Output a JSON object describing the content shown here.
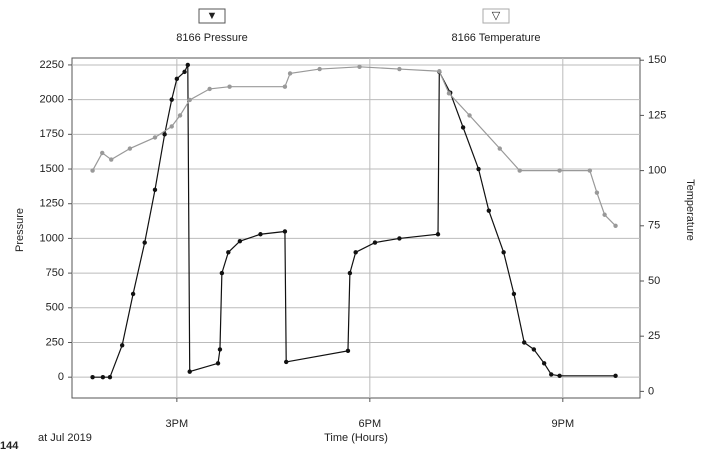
{
  "chart_data": {
    "type": "line",
    "xlabel": "Time (Hours)",
    "ylabel": "Pressure",
    "y2label": "Temperature",
    "annotation": "144",
    "annotation_note": "at Jul 2019",
    "xlim": [
      13.37,
      22.2
    ],
    "xticks": [
      {
        "value": 15,
        "label": "3PM"
      },
      {
        "value": 18,
        "label": "6PM"
      },
      {
        "value": 21,
        "label": "9PM"
      }
    ],
    "ylim": [
      -150,
      2300
    ],
    "yticks": [
      0,
      250,
      500,
      750,
      1000,
      1250,
      1500,
      1750,
      2000,
      2250
    ],
    "y2lim": [
      -3,
      151
    ],
    "y2ticks": [
      0,
      25,
      50,
      75,
      100,
      125,
      150
    ],
    "grid": true,
    "series": [
      {
        "name": "8166 Pressure",
        "color": "#111111",
        "x": [
          13.69,
          13.85,
          13.96,
          14.15,
          14.32,
          14.5,
          14.66,
          14.81,
          14.92,
          15.0,
          15.12,
          15.17,
          15.2,
          15.64,
          15.67,
          15.7,
          15.8,
          15.98,
          16.3,
          16.68,
          16.7,
          17.66,
          17.69,
          17.78,
          18.08,
          18.46,
          19.06,
          19.08,
          19.25,
          19.45,
          19.69,
          19.85,
          20.08,
          20.24,
          20.4,
          20.55,
          20.71,
          20.82,
          20.95,
          21.82
        ],
        "values": [
          0,
          0,
          0,
          230,
          600,
          970,
          1350,
          1750,
          2000,
          2150,
          2200,
          2250,
          40,
          100,
          200,
          750,
          900,
          980,
          1030,
          1050,
          110,
          190,
          750,
          900,
          970,
          1000,
          1030,
          2200,
          2050,
          1800,
          1500,
          1200,
          900,
          600,
          250,
          200,
          100,
          20,
          10,
          10
        ]
      },
      {
        "name": "8166 Temperature",
        "color": "#999999",
        "axis": "y2",
        "x": [
          13.69,
          13.84,
          13.98,
          14.27,
          14.66,
          14.92,
          15.05,
          15.2,
          15.51,
          15.82,
          16.68,
          16.76,
          17.22,
          17.84,
          18.46,
          19.08,
          19.23,
          19.55,
          20.02,
          20.33,
          20.95,
          21.42,
          21.53,
          21.65,
          21.82
        ],
        "values": [
          100,
          108,
          105,
          110,
          115,
          120,
          125,
          132,
          137,
          138,
          138,
          144,
          146,
          147,
          146,
          145,
          135,
          125,
          110,
          100,
          100,
          100,
          90,
          80,
          75
        ]
      }
    ]
  }
}
